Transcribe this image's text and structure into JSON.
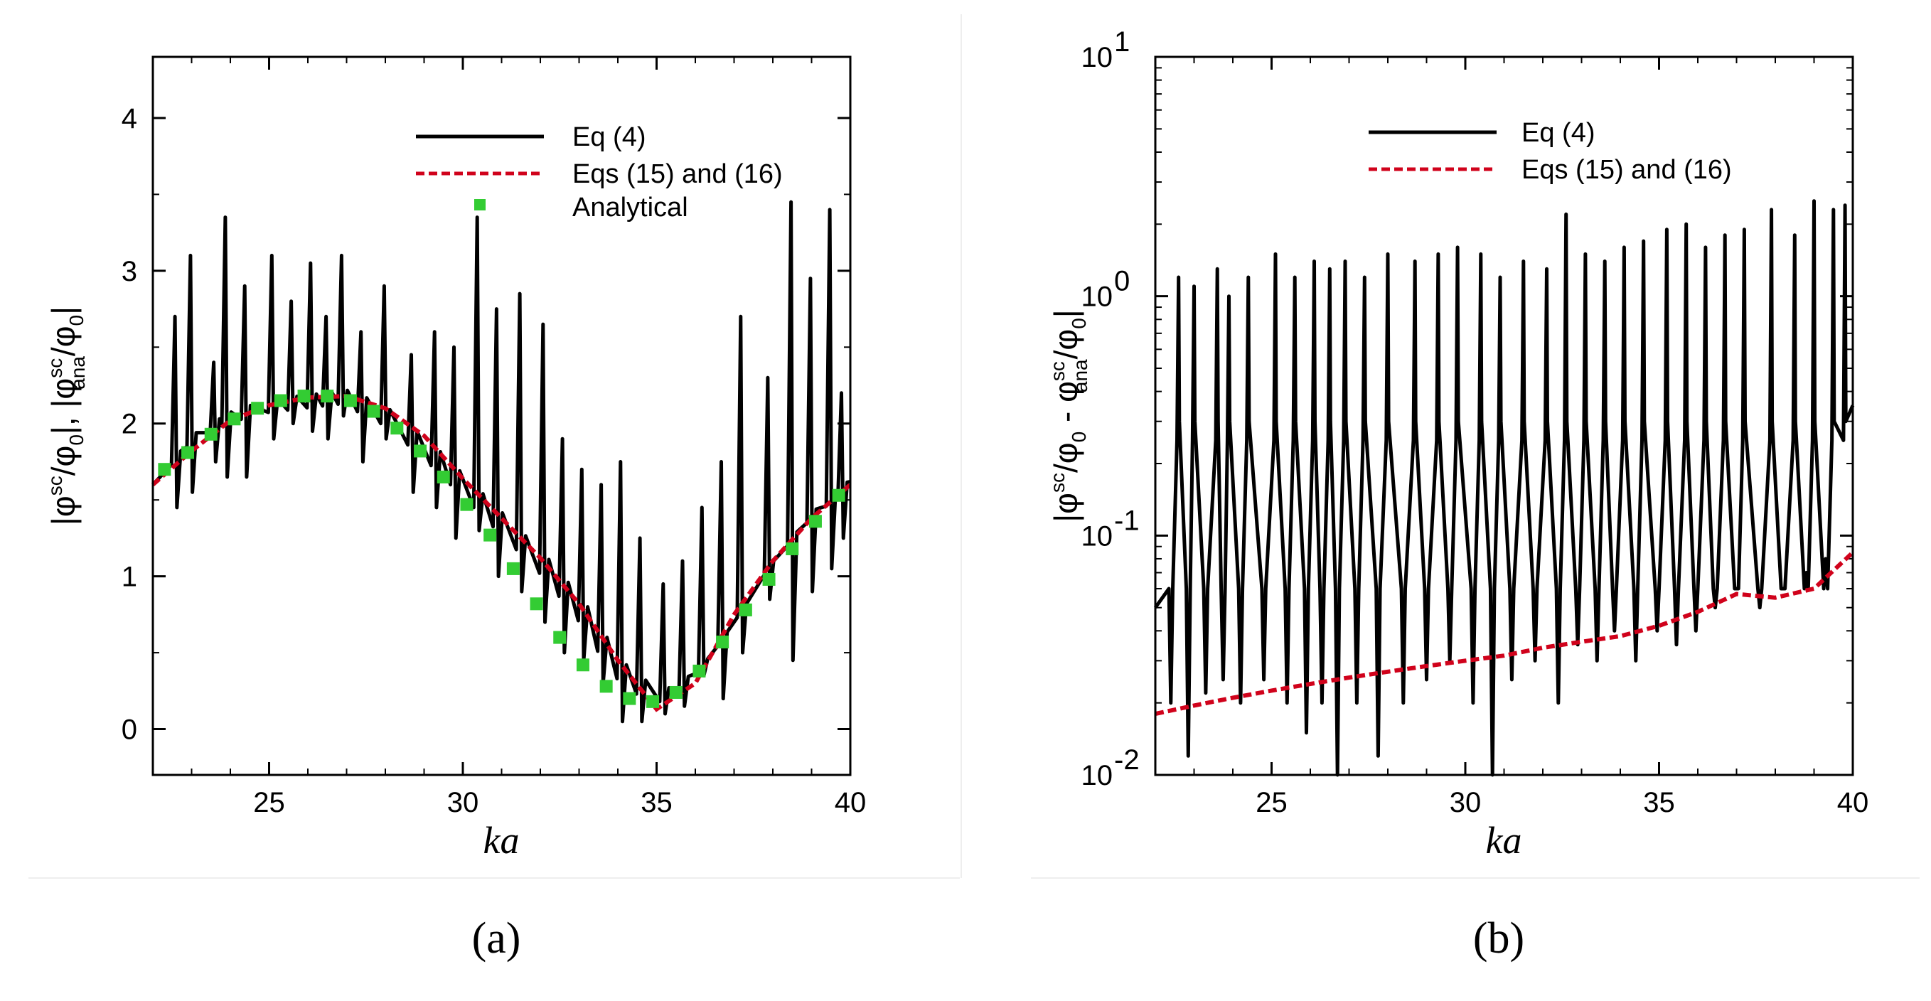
{
  "chart_data": [
    {
      "panel": "a",
      "type": "line",
      "title": "",
      "xlabel": "ka",
      "ylabel_parts": [
        "|φ",
        "sc",
        "/φ",
        "0",
        "|, |φ",
        "sc",
        "ana",
        "/φ",
        "0",
        "|"
      ],
      "xlim": [
        22,
        40
      ],
      "ylim": [
        -0.3,
        4.4
      ],
      "xticks": [
        25,
        30,
        35,
        40
      ],
      "yticks": [
        0,
        1,
        2,
        3,
        4
      ],
      "legend_position": "top-right",
      "series": [
        {
          "name": "Eq (4)",
          "style": "solid",
          "color": "#000000",
          "smooth": [
            [
              22,
              1.6
            ],
            [
              23,
              1.9
            ],
            [
              24,
              2.05
            ],
            [
              25,
              2.12
            ],
            [
              26,
              2.15
            ],
            [
              27,
              2.18
            ],
            [
              28,
              2.05
            ],
            [
              29,
              1.85
            ],
            [
              30,
              1.6
            ],
            [
              31,
              1.35
            ],
            [
              32,
              1.1
            ],
            [
              33,
              0.8
            ],
            [
              34,
              0.4
            ],
            [
              35,
              0.2
            ],
            [
              36,
              0.35
            ],
            [
              37,
              0.7
            ],
            [
              38,
              1.1
            ],
            [
              39,
              1.4
            ],
            [
              40,
              1.62
            ]
          ],
          "peaks": [
            22.6,
            23.0,
            23.6,
            23.9,
            24.4,
            25.1,
            25.6,
            26.1,
            26.5,
            26.9,
            27.4,
            28.0,
            28.7,
            29.3,
            29.8,
            30.4,
            30.9,
            31.5,
            32.1,
            32.6,
            33.1,
            33.6,
            34.1,
            34.6,
            35.2,
            35.7,
            36.2,
            36.7,
            37.2,
            37.9,
            38.5,
            39.0,
            39.5,
            39.8
          ],
          "peak_hi": [
            2.7,
            3.1,
            2.4,
            3.35,
            2.9,
            3.1,
            2.8,
            3.05,
            2.7,
            3.1,
            2.6,
            2.9,
            2.45,
            2.6,
            2.5,
            3.35,
            2.75,
            2.85,
            2.65,
            1.9,
            1.7,
            1.6,
            1.75,
            1.25,
            0.95,
            1.1,
            1.45,
            1.75,
            2.7,
            2.3,
            3.45,
            2.95,
            3.4,
            2.2
          ],
          "peak_lo": [
            1.45,
            1.55,
            1.75,
            1.65,
            1.65,
            1.9,
            2.0,
            1.95,
            1.9,
            2.05,
            1.75,
            1.9,
            1.55,
            1.45,
            1.25,
            1.3,
            1.0,
            0.9,
            0.7,
            0.5,
            0.45,
            0.3,
            0.05,
            0.05,
            0.1,
            0.15,
            0.35,
            0.2,
            0.5,
            0.85,
            0.45,
            0.9,
            1.05,
            1.25
          ]
        },
        {
          "name": "Eqs (15) and (16)",
          "style": "dashed",
          "color": "#d0021b",
          "x": [
            22,
            23,
            24,
            25,
            26,
            27,
            28,
            29,
            30,
            31,
            32,
            33,
            34,
            35,
            36,
            37,
            38,
            39,
            40
          ],
          "y": [
            1.6,
            1.82,
            2.02,
            2.12,
            2.17,
            2.18,
            2.1,
            1.92,
            1.64,
            1.38,
            1.12,
            0.82,
            0.45,
            0.13,
            0.3,
            0.75,
            1.1,
            1.38,
            1.6
          ]
        },
        {
          "name": "Analytical",
          "style": "marker",
          "color": "#33cc33",
          "x": [
            22.3,
            22.9,
            23.5,
            24.1,
            24.7,
            25.3,
            25.9,
            26.5,
            27.1,
            27.7,
            28.3,
            28.9,
            29.5,
            30.1,
            30.7,
            31.3,
            31.9,
            32.5,
            33.1,
            33.7,
            34.3,
            34.9,
            35.5,
            36.1,
            36.7,
            37.3,
            37.9,
            38.5,
            39.1,
            39.7
          ],
          "y": [
            1.7,
            1.81,
            1.93,
            2.03,
            2.1,
            2.15,
            2.18,
            2.18,
            2.15,
            2.08,
            1.97,
            1.82,
            1.65,
            1.47,
            1.27,
            1.05,
            0.82,
            0.6,
            0.42,
            0.28,
            0.2,
            0.18,
            0.24,
            0.38,
            0.57,
            0.78,
            0.98,
            1.18,
            1.36,
            1.53
          ]
        }
      ]
    },
    {
      "panel": "b",
      "type": "line",
      "yscale": "log",
      "title": "",
      "xlabel": "ka",
      "ylabel_parts": [
        "|φ",
        "sc",
        "/φ",
        "0",
        " - φ",
        "sc",
        "ana",
        "/φ",
        "0",
        "|"
      ],
      "xlim": [
        22,
        40
      ],
      "ylim_log10": [
        -2,
        1
      ],
      "xticks": [
        25,
        30,
        35,
        40
      ],
      "yticks": [
        {
          "base": "10",
          "exp": "-2",
          "value": 0.01
        },
        {
          "base": "10",
          "exp": "-1",
          "value": 0.1
        },
        {
          "base": "10",
          "exp": "0",
          "value": 1
        },
        {
          "base": "10",
          "exp": "1",
          "value": 10
        }
      ],
      "legend_position": "top-center",
      "series": [
        {
          "name": "Eq (4)",
          "style": "solid",
          "color": "#000000",
          "peaks": [
            22.6,
            23.0,
            23.6,
            23.9,
            24.4,
            25.1,
            25.6,
            26.1,
            26.5,
            26.9,
            27.4,
            28.0,
            28.7,
            29.3,
            29.8,
            30.4,
            30.9,
            31.5,
            32.1,
            32.6,
            33.1,
            33.6,
            34.1,
            34.6,
            35.2,
            35.7,
            36.2,
            36.7,
            37.2,
            37.9,
            38.5,
            39.0,
            39.5,
            39.8
          ],
          "peak_hi": [
            1.2,
            1.1,
            1.3,
            1.0,
            1.2,
            1.5,
            1.2,
            1.4,
            1.3,
            1.4,
            1.2,
            1.5,
            1.4,
            1.5,
            1.6,
            1.5,
            1.2,
            1.4,
            1.3,
            2.2,
            1.5,
            1.4,
            1.6,
            1.7,
            1.9,
            2.0,
            1.6,
            1.8,
            1.9,
            2.3,
            1.8,
            2.5,
            2.3,
            2.4
          ],
          "troughs": [
            22.4,
            22.85,
            23.3,
            23.75,
            24.2,
            24.8,
            25.4,
            25.9,
            26.3,
            26.7,
            27.2,
            27.75,
            28.4,
            29.0,
            29.6,
            30.2,
            30.7,
            31.2,
            31.8,
            32.4,
            32.9,
            33.4,
            33.85,
            34.4,
            34.95,
            35.45,
            35.95,
            36.45,
            37.0,
            37.6,
            38.2,
            38.8,
            39.3
          ],
          "trough_lo": [
            0.02,
            0.012,
            0.022,
            0.025,
            0.02,
            0.025,
            0.02,
            0.015,
            0.02,
            0.01,
            0.02,
            0.012,
            0.02,
            0.025,
            0.03,
            0.02,
            0.01,
            0.025,
            0.03,
            0.02,
            0.035,
            0.03,
            0.04,
            0.03,
            0.04,
            0.035,
            0.04,
            0.05,
            0.06,
            0.05,
            0.06,
            0.07,
            0.08
          ]
        },
        {
          "name": "Eqs (15) and (16)",
          "style": "dashed",
          "color": "#d0021b",
          "x": [
            22,
            23,
            24,
            25,
            26,
            27,
            28,
            29,
            30,
            31,
            32,
            33,
            34,
            35,
            36,
            37,
            38,
            39,
            40
          ],
          "y": [
            0.018,
            0.0195,
            0.021,
            0.0225,
            0.024,
            0.0255,
            0.027,
            0.0285,
            0.03,
            0.0315,
            0.034,
            0.036,
            0.038,
            0.042,
            0.048,
            0.057,
            0.055,
            0.06,
            0.085
          ]
        }
      ]
    }
  ],
  "captions": {
    "a": "(a)",
    "b": "(b)"
  }
}
